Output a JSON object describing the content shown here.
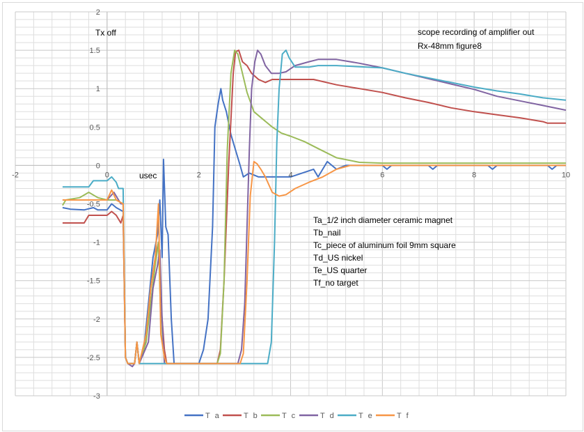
{
  "chart_data": {
    "type": "line",
    "title": "",
    "xlabel": "usec",
    "ylabel": "",
    "xlim": [
      -2,
      10
    ],
    "ylim": [
      -3,
      2
    ],
    "x_major": 2,
    "x_minor": 0.4,
    "y_major": 0.5,
    "y_minor": 0.1,
    "grid": true,
    "legend_placement": "bottom",
    "x_ticks": [
      "-2",
      "0",
      "2",
      "4",
      "6",
      "8",
      "10"
    ],
    "y_ticks": [
      "-3",
      "-2.5",
      "-2",
      "-1.5",
      "-1",
      "-0.5",
      "0",
      "0.5",
      "1",
      "1.5",
      "2"
    ],
    "annotations": {
      "tx_off": "Tx off",
      "usec": "usec",
      "title_line1": "scope recording of amplifier out",
      "title_line2": "Rx-48mm figure8",
      "targets": [
        "Ta_1/2 inch diameter ceramic magnet",
        "Tb_nail",
        "Tc_piece of aluminum foil 9mm square",
        "Td_US nickel",
        "Te_US quarter",
        "Tf_no target"
      ]
    },
    "series": [
      {
        "name": "T a",
        "color": "#4472c4",
        "points": [
          [
            -0.97,
            -0.55
          ],
          [
            -0.8,
            -0.57
          ],
          [
            -0.5,
            -0.58
          ],
          [
            -0.3,
            -0.55
          ],
          [
            -0.2,
            -0.58
          ],
          [
            0,
            -0.58
          ],
          [
            0.1,
            -0.5
          ],
          [
            0.2,
            -0.55
          ],
          [
            0.35,
            -0.6
          ],
          [
            0.4,
            -2.5
          ],
          [
            0.45,
            -2.58
          ],
          [
            0.6,
            -2.58
          ],
          [
            0.65,
            -2.3
          ],
          [
            0.7,
            -2.58
          ],
          [
            0.8,
            -2.4
          ],
          [
            0.9,
            -1.8
          ],
          [
            1.0,
            -1.2
          ],
          [
            1.1,
            -0.9
          ],
          [
            1.15,
            -0.45
          ],
          [
            1.2,
            -1.2
          ],
          [
            1.23,
            0.08
          ],
          [
            1.28,
            -0.8
          ],
          [
            1.33,
            -0.9
          ],
          [
            1.4,
            -2.0
          ],
          [
            1.46,
            -2.58
          ],
          [
            2.0,
            -2.58
          ],
          [
            2.1,
            -2.4
          ],
          [
            2.2,
            -2.0
          ],
          [
            2.3,
            -0.8
          ],
          [
            2.35,
            0.5
          ],
          [
            2.42,
            0.8
          ],
          [
            2.48,
            1.0
          ],
          [
            2.52,
            0.85
          ],
          [
            2.6,
            0.7
          ],
          [
            2.7,
            0.4
          ],
          [
            2.8,
            0.2
          ],
          [
            2.9,
            0.0
          ],
          [
            2.97,
            -0.15
          ],
          [
            3.1,
            -0.1
          ],
          [
            3.3,
            -0.15
          ],
          [
            4.0,
            -0.15
          ],
          [
            4.5,
            -0.05
          ],
          [
            4.6,
            -0.15
          ],
          [
            4.8,
            0.05
          ],
          [
            5.0,
            -0.05
          ],
          [
            5.2,
            0.0
          ],
          [
            6.0,
            0.0
          ],
          [
            6.1,
            -0.05
          ],
          [
            6.2,
            0.0
          ],
          [
            7.0,
            0.0
          ],
          [
            7.1,
            -0.05
          ],
          [
            7.2,
            0.0
          ],
          [
            8.3,
            0.0
          ],
          [
            8.4,
            -0.05
          ],
          [
            8.5,
            0.0
          ],
          [
            9.6,
            0.0
          ],
          [
            9.7,
            -0.05
          ],
          [
            9.8,
            0.0
          ],
          [
            10,
            0.0
          ]
        ]
      },
      {
        "name": "T b",
        "color": "#c0504d",
        "points": [
          [
            -0.97,
            -0.75
          ],
          [
            -0.5,
            -0.75
          ],
          [
            -0.4,
            -0.65
          ],
          [
            0,
            -0.65
          ],
          [
            0.1,
            -0.6
          ],
          [
            0.2,
            -0.65
          ],
          [
            0.3,
            -0.75
          ],
          [
            0.35,
            -0.65
          ],
          [
            0.4,
            -2.5
          ],
          [
            0.45,
            -2.58
          ],
          [
            0.6,
            -2.58
          ],
          [
            0.65,
            -2.3
          ],
          [
            0.7,
            -2.58
          ],
          [
            0.85,
            -2.3
          ],
          [
            0.95,
            -1.6
          ],
          [
            1.05,
            -1.2
          ],
          [
            1.12,
            -1.0
          ],
          [
            1.17,
            -1.8
          ],
          [
            1.2,
            -2.0
          ],
          [
            1.25,
            -2.4
          ],
          [
            1.3,
            -2.58
          ],
          [
            2.4,
            -2.58
          ],
          [
            2.47,
            -2.4
          ],
          [
            2.55,
            -1.5
          ],
          [
            2.65,
            0.0
          ],
          [
            2.75,
            1.2
          ],
          [
            2.8,
            1.48
          ],
          [
            2.87,
            1.5
          ],
          [
            2.95,
            1.35
          ],
          [
            3.05,
            1.3
          ],
          [
            3.15,
            1.2
          ],
          [
            3.3,
            1.12
          ],
          [
            3.45,
            1.08
          ],
          [
            3.6,
            1.12
          ],
          [
            4.5,
            1.12
          ],
          [
            5.0,
            1.05
          ],
          [
            5.5,
            1.0
          ],
          [
            6.0,
            0.95
          ],
          [
            6.5,
            0.88
          ],
          [
            7.0,
            0.82
          ],
          [
            7.5,
            0.75
          ],
          [
            8.0,
            0.7
          ],
          [
            8.5,
            0.66
          ],
          [
            9.0,
            0.62
          ],
          [
            9.5,
            0.57
          ],
          [
            9.6,
            0.55
          ],
          [
            10,
            0.55
          ]
        ]
      },
      {
        "name": "T c",
        "color": "#9bbb59",
        "points": [
          [
            -0.97,
            -0.52
          ],
          [
            -0.9,
            -0.45
          ],
          [
            -0.6,
            -0.42
          ],
          [
            -0.4,
            -0.35
          ],
          [
            -0.2,
            -0.42
          ],
          [
            0,
            -0.45
          ],
          [
            0.2,
            -0.45
          ],
          [
            0.35,
            -0.5
          ],
          [
            0.4,
            -2.5
          ],
          [
            0.45,
            -2.58
          ],
          [
            0.6,
            -2.58
          ],
          [
            0.65,
            -2.3
          ],
          [
            0.7,
            -2.58
          ],
          [
            0.85,
            -2.3
          ],
          [
            0.95,
            -1.8
          ],
          [
            1.05,
            -1.3
          ],
          [
            1.12,
            -1.0
          ],
          [
            1.18,
            -2.2
          ],
          [
            1.25,
            -2.5
          ],
          [
            1.3,
            -2.58
          ],
          [
            2.4,
            -2.58
          ],
          [
            2.47,
            -2.45
          ],
          [
            2.55,
            -1.5
          ],
          [
            2.62,
            0.2
          ],
          [
            2.7,
            1.2
          ],
          [
            2.78,
            1.5
          ],
          [
            2.85,
            1.45
          ],
          [
            2.95,
            1.2
          ],
          [
            3.05,
            0.95
          ],
          [
            3.2,
            0.7
          ],
          [
            3.4,
            0.6
          ],
          [
            3.6,
            0.5
          ],
          [
            3.8,
            0.42
          ],
          [
            4.0,
            0.38
          ],
          [
            4.3,
            0.31
          ],
          [
            4.6,
            0.22
          ],
          [
            5.0,
            0.1
          ],
          [
            5.5,
            0.04
          ],
          [
            6.0,
            0.03
          ],
          [
            10,
            0.03
          ]
        ]
      },
      {
        "name": "T d",
        "color": "#8064a2",
        "points": [
          [
            -0.97,
            -0.45
          ],
          [
            -0.5,
            -0.45
          ],
          [
            0,
            -0.45
          ],
          [
            0.15,
            -0.35
          ],
          [
            0.3,
            -0.5
          ],
          [
            0.35,
            -0.5
          ],
          [
            0.4,
            -2.5
          ],
          [
            0.45,
            -2.58
          ],
          [
            0.55,
            -2.62
          ],
          [
            0.6,
            -2.58
          ],
          [
            0.65,
            -2.3
          ],
          [
            0.7,
            -2.58
          ],
          [
            0.9,
            -2.3
          ],
          [
            1.0,
            -1.6
          ],
          [
            1.1,
            -1.3
          ],
          [
            1.15,
            -1.1
          ],
          [
            1.2,
            -2.0
          ],
          [
            1.25,
            -2.58
          ],
          [
            2.85,
            -2.58
          ],
          [
            2.93,
            -2.4
          ],
          [
            3.0,
            -1.8
          ],
          [
            3.05,
            -0.8
          ],
          [
            3.1,
            0.2
          ],
          [
            3.15,
            1.0
          ],
          [
            3.22,
            1.35
          ],
          [
            3.28,
            1.5
          ],
          [
            3.35,
            1.45
          ],
          [
            3.45,
            1.3
          ],
          [
            3.58,
            1.2
          ],
          [
            3.75,
            1.2
          ],
          [
            3.9,
            1.22
          ],
          [
            4.1,
            1.3
          ],
          [
            4.4,
            1.35
          ],
          [
            4.6,
            1.38
          ],
          [
            5.0,
            1.38
          ],
          [
            5.5,
            1.33
          ],
          [
            6.0,
            1.27
          ],
          [
            6.5,
            1.2
          ],
          [
            7.0,
            1.13
          ],
          [
            7.5,
            1.06
          ],
          [
            8.0,
            0.99
          ],
          [
            8.5,
            0.9
          ],
          [
            9.0,
            0.84
          ],
          [
            9.5,
            0.78
          ],
          [
            10,
            0.72
          ]
        ]
      },
      {
        "name": "T e",
        "color": "#4bacc6",
        "points": [
          [
            -0.97,
            -0.28
          ],
          [
            -0.4,
            -0.28
          ],
          [
            -0.3,
            -0.2
          ],
          [
            0,
            -0.2
          ],
          [
            0.1,
            -0.15
          ],
          [
            0.2,
            -0.22
          ],
          [
            0.25,
            -0.3
          ],
          [
            0.35,
            -0.3
          ],
          [
            0.4,
            -2.5
          ],
          [
            0.45,
            -2.58
          ],
          [
            0.6,
            -2.58
          ],
          [
            0.65,
            -2.3
          ],
          [
            0.7,
            -2.58
          ],
          [
            3.5,
            -2.58
          ],
          [
            3.58,
            -2.3
          ],
          [
            3.65,
            -1.0
          ],
          [
            3.7,
            0.3
          ],
          [
            3.75,
            1.0
          ],
          [
            3.82,
            1.45
          ],
          [
            3.9,
            1.5
          ],
          [
            3.97,
            1.4
          ],
          [
            4.1,
            1.28
          ],
          [
            4.4,
            1.28
          ],
          [
            4.6,
            1.3
          ],
          [
            5.0,
            1.3
          ],
          [
            6.0,
            1.27
          ],
          [
            6.5,
            1.2
          ],
          [
            7.0,
            1.14
          ],
          [
            7.5,
            1.08
          ],
          [
            8.0,
            1.02
          ],
          [
            8.5,
            0.97
          ],
          [
            9.0,
            0.93
          ],
          [
            9.5,
            0.88
          ],
          [
            10,
            0.85
          ]
        ]
      },
      {
        "name": "T f",
        "color": "#f79646",
        "points": [
          [
            -0.97,
            -0.45
          ],
          [
            -0.5,
            -0.45
          ],
          [
            0,
            -0.45
          ],
          [
            0.1,
            -0.32
          ],
          [
            0.2,
            -0.45
          ],
          [
            0.35,
            -0.5
          ],
          [
            0.4,
            -2.5
          ],
          [
            0.45,
            -2.58
          ],
          [
            0.6,
            -2.58
          ],
          [
            0.65,
            -2.3
          ],
          [
            0.7,
            -2.58
          ],
          [
            0.85,
            -2.2
          ],
          [
            0.95,
            -1.6
          ],
          [
            1.05,
            -1.2
          ],
          [
            1.12,
            -0.5
          ],
          [
            1.17,
            -2.2
          ],
          [
            1.25,
            -2.5
          ],
          [
            1.3,
            -2.58
          ],
          [
            2.9,
            -2.58
          ],
          [
            2.97,
            -2.45
          ],
          [
            3.05,
            -1.5
          ],
          [
            3.12,
            -0.4
          ],
          [
            3.2,
            0.05
          ],
          [
            3.27,
            0.02
          ],
          [
            3.35,
            -0.05
          ],
          [
            3.45,
            -0.15
          ],
          [
            3.6,
            -0.35
          ],
          [
            3.75,
            -0.4
          ],
          [
            3.9,
            -0.38
          ],
          [
            4.1,
            -0.3
          ],
          [
            4.4,
            -0.22
          ],
          [
            4.7,
            -0.15
          ],
          [
            5.0,
            -0.05
          ],
          [
            5.3,
            0.0
          ],
          [
            10,
            0.0
          ]
        ]
      }
    ]
  }
}
